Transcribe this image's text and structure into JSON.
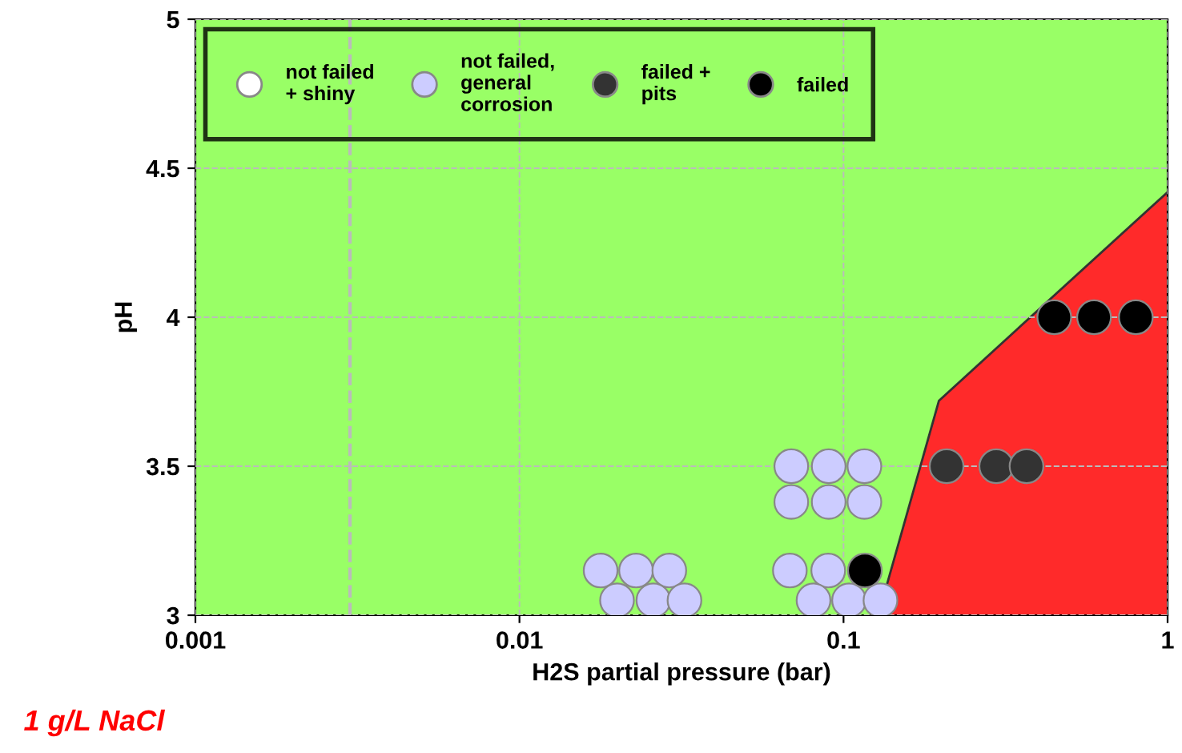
{
  "chart_data": {
    "type": "scatter",
    "xlabel": "H2S partial pressure (bar)",
    "ylabel": "pH",
    "log": "x",
    "xlim": [
      0.001,
      1
    ],
    "xticks": [
      0.001,
      0.01,
      0.1,
      1
    ],
    "ylim": [
      3,
      5
    ],
    "yticks": [
      3,
      3.5,
      4,
      4.5,
      5
    ],
    "grid": true,
    "legend": "top left",
    "marker": "circle",
    "series": [
      {
        "type": "area",
        "color": "#ff2a2a",
        "marker": "none",
        "x": [
          0.128,
          0.197,
          1
        ],
        "values": [
          3,
          3.72,
          4.42
        ]
      },
      {
        "name": "not failed\n+ shiny",
        "color": "#ffffff"
      },
      {
        "name": "not failed,\ngeneral\ncorrosion",
        "color": "#ccccff",
        "x": [
          0.0178,
          0.0229,
          0.029,
          0.02,
          0.0259,
          0.0323,
          0.0683,
          0.0897,
          0.0808,
          0.104,
          0.13,
          0.069,
          0.09,
          0.116,
          0.069,
          0.09,
          0.116
        ],
        "values": [
          3.15,
          3.15,
          3.15,
          3.05,
          3.05,
          3.05,
          3.15,
          3.15,
          3.05,
          3.05,
          3.05,
          3.38,
          3.38,
          3.38,
          3.5,
          3.5,
          3.5
        ]
      },
      {
        "name": "failed +\npits",
        "color": "#333333",
        "x": [
          0.208,
          0.296,
          0.367
        ],
        "values": [
          3.5,
          3.5,
          3.5
        ]
      },
      {
        "name": "failed",
        "color": "#000000",
        "x": [
          0.1164,
          0.447,
          0.593,
          0.798
        ],
        "values": [
          3.15,
          4.0,
          4.0,
          4.0
        ]
      }
    ],
    "bands": [
      {
        "axis": "y",
        "from": 3,
        "to": 5,
        "color": "#99ff66"
      }
    ],
    "ref_lines": [
      {
        "axis": "x",
        "value": 0.003,
        "color": "#bbbbbb",
        "line_style": "dashed"
      }
    ],
    "annotations": [
      "1 g/L NaCl"
    ]
  }
}
